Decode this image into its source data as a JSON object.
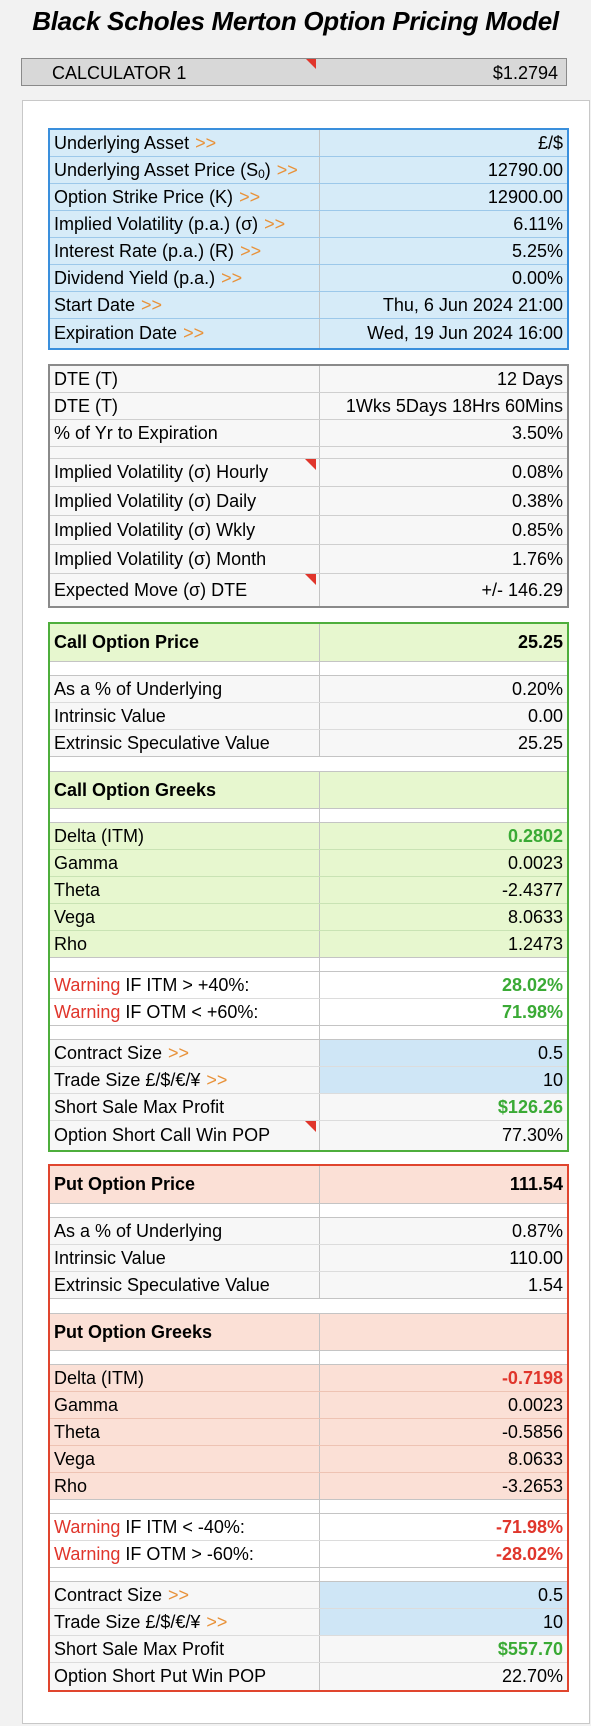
{
  "title": "Black Scholes Merton Option Pricing Model",
  "calculator": {
    "label": "CALCULATOR 1",
    "value": "$1.2794"
  },
  "colors": {
    "blue_border": "#3a8fdc",
    "green_border": "#4eae3c",
    "red_border": "#e0452e",
    "warning": "#e0352b",
    "arrow": "#e8923a",
    "positive": "#3aaa35"
  },
  "inputs": [
    {
      "label": "Underlying Asset",
      "value": "£/$"
    },
    {
      "label": "Underlying Asset Price (S",
      "label_sub": "0",
      "label_tail": ")",
      "value": "12790.00"
    },
    {
      "label": "Option Strike Price (K)",
      "value": "12900.00"
    },
    {
      "label": "Implied Volatility (p.a.) (σ)",
      "value": "6.11%"
    },
    {
      "label": "Interest Rate (p.a.) (R)",
      "value": "5.25%"
    },
    {
      "label": "Dividend Yield (p.a.)",
      "value": "0.00%"
    },
    {
      "label": "Start Date",
      "value": "Thu, 6 Jun 2024 21:00"
    },
    {
      "label": "Expiration Date",
      "value": "Wed, 19 Jun 2024 16:00"
    }
  ],
  "arrow": ">>",
  "time": [
    {
      "label": "DTE (T)",
      "value": "12 Days"
    },
    {
      "label": "DTE (T)",
      "value": "1Wks 5Days 18Hrs 60Mins"
    },
    {
      "label": "% of Yr to Expiration",
      "value": "3.50%"
    },
    {
      "label": "Implied Volatility (σ) Hourly",
      "value": "0.08%"
    },
    {
      "label": "Implied Volatility (σ) Daily",
      "value": "0.38%"
    },
    {
      "label": "Implied Volatility (σ) Wkly",
      "value": "0.85%"
    },
    {
      "label": "Implied Volatility (σ) Month",
      "value": "1.76%"
    },
    {
      "label": "Expected Move (σ) DTE",
      "value": "+/- 146.29"
    }
  ],
  "call": {
    "price_label": "Call Option Price",
    "price": "25.25",
    "pct_label": "As a % of Underlying",
    "pct": "0.20%",
    "intrinsic_label": "Intrinsic Value",
    "intrinsic": "0.00",
    "extrinsic_label": "Extrinsic Speculative Value",
    "extrinsic": "25.25",
    "greeks_label": "Call Option Greeks",
    "greeks": [
      {
        "label": "Delta (ITM)",
        "value": "0.2802"
      },
      {
        "label": "Gamma",
        "value": "0.0023"
      },
      {
        "label": "Theta",
        "value": "-2.4377"
      },
      {
        "label": "Vega",
        "value": "8.0633"
      },
      {
        "label": "Rho",
        "value": "1.2473"
      }
    ],
    "warn_word": "Warning",
    "warn1_label": "IF ITM > +40%:",
    "warn1": "28.02%",
    "warn2_label": "IF OTM < +60%:",
    "warn2": "71.98%",
    "contract_label": "Contract Size",
    "contract": "0.5",
    "trade_label": "Trade Size £/$/€/¥",
    "trade": "10",
    "maxprofit_label": "Short Sale Max Profit",
    "maxprofit": "$126.26",
    "pop_label": "Option Short Call Win POP",
    "pop": "77.30%"
  },
  "put": {
    "price_label": "Put Option Price",
    "price": "111.54",
    "pct_label": "As a % of Underlying",
    "pct": "0.87%",
    "intrinsic_label": "Intrinsic Value",
    "intrinsic": "110.00",
    "extrinsic_label": "Extrinsic Speculative Value",
    "extrinsic": "1.54",
    "greeks_label": "Put Option Greeks",
    "greeks": [
      {
        "label": "Delta (ITM)",
        "value": "-0.7198"
      },
      {
        "label": "Gamma",
        "value": "0.0023"
      },
      {
        "label": "Theta",
        "value": "-0.5856"
      },
      {
        "label": "Vega",
        "value": "8.0633"
      },
      {
        "label": "Rho",
        "value": "-3.2653"
      }
    ],
    "warn_word": "Warning",
    "warn1_label": "IF ITM < -40%:",
    "warn1": "-71.98%",
    "warn2_label": "IF OTM > -60%:",
    "warn2": "-28.02%",
    "contract_label": "Contract Size",
    "contract": "0.5",
    "trade_label": "Trade Size £/$/€/¥",
    "trade": "10",
    "maxprofit_label": "Short Sale Max Profit",
    "maxprofit": "$557.70",
    "pop_label": "Option Short Put Win POP",
    "pop": "22.70%"
  }
}
